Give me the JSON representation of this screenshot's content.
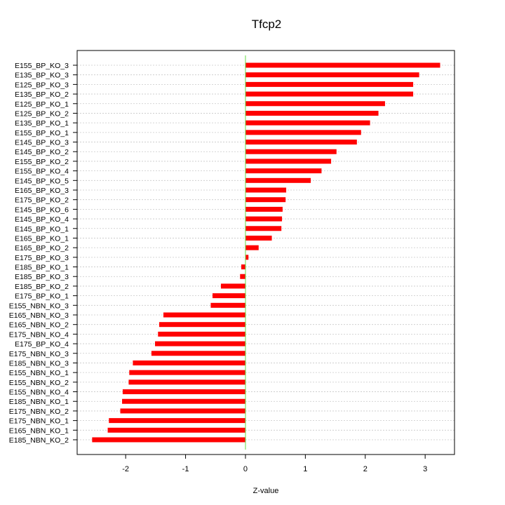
{
  "chart_data": {
    "type": "bar",
    "orientation": "horizontal",
    "title": "Tfcp2",
    "xlabel": "Z-value",
    "ylabel": "",
    "xlim": [
      -2.81,
      3.49
    ],
    "xticks": [
      -2,
      -1,
      0,
      1,
      2,
      3
    ],
    "xtick_labels": [
      "-2",
      "-1",
      "0",
      "1",
      "2",
      "3"
    ],
    "grid": "horizontal dotted",
    "bar_color": "#ff0000",
    "zero_line_color": "#66dd44",
    "categories": [
      "E155_BP_KO_3",
      "E135_BP_KO_3",
      "E125_BP_KO_3",
      "E135_BP_KO_2",
      "E125_BP_KO_1",
      "E125_BP_KO_2",
      "E135_BP_KO_1",
      "E155_BP_KO_1",
      "E145_BP_KO_3",
      "E145_BP_KO_2",
      "E155_BP_KO_2",
      "E155_BP_KO_4",
      "E145_BP_KO_5",
      "E165_BP_KO_3",
      "E175_BP_KO_2",
      "E145_BP_KO_6",
      "E145_BP_KO_4",
      "E145_BP_KO_1",
      "E165_BP_KO_1",
      "E165_BP_KO_2",
      "E175_BP_KO_3",
      "E185_BP_KO_1",
      "E185_BP_KO_3",
      "E185_BP_KO_2",
      "E175_BP_KO_1",
      "E155_NBN_KO_3",
      "E165_NBN_KO_3",
      "E165_NBN_KO_2",
      "E175_NBN_KO_4",
      "E175_BP_KO_4",
      "E175_NBN_KO_3",
      "E185_NBN_KO_3",
      "E155_NBN_KO_1",
      "E155_NBN_KO_2",
      "E155_NBN_KO_4",
      "E185_NBN_KO_1",
      "E175_NBN_KO_2",
      "E175_NBN_KO_1",
      "E165_NBN_KO_1",
      "E185_NBN_KO_2"
    ],
    "values": [
      3.25,
      2.9,
      2.8,
      2.8,
      2.33,
      2.22,
      2.08,
      1.93,
      1.86,
      1.52,
      1.43,
      1.27,
      1.09,
      0.68,
      0.67,
      0.62,
      0.61,
      0.6,
      0.44,
      0.22,
      0.05,
      -0.07,
      -0.09,
      -0.41,
      -0.55,
      -0.58,
      -1.37,
      -1.44,
      -1.46,
      -1.51,
      -1.57,
      -1.88,
      -1.94,
      -1.95,
      -2.05,
      -2.06,
      -2.09,
      -2.28,
      -2.3,
      -2.56
    ]
  }
}
